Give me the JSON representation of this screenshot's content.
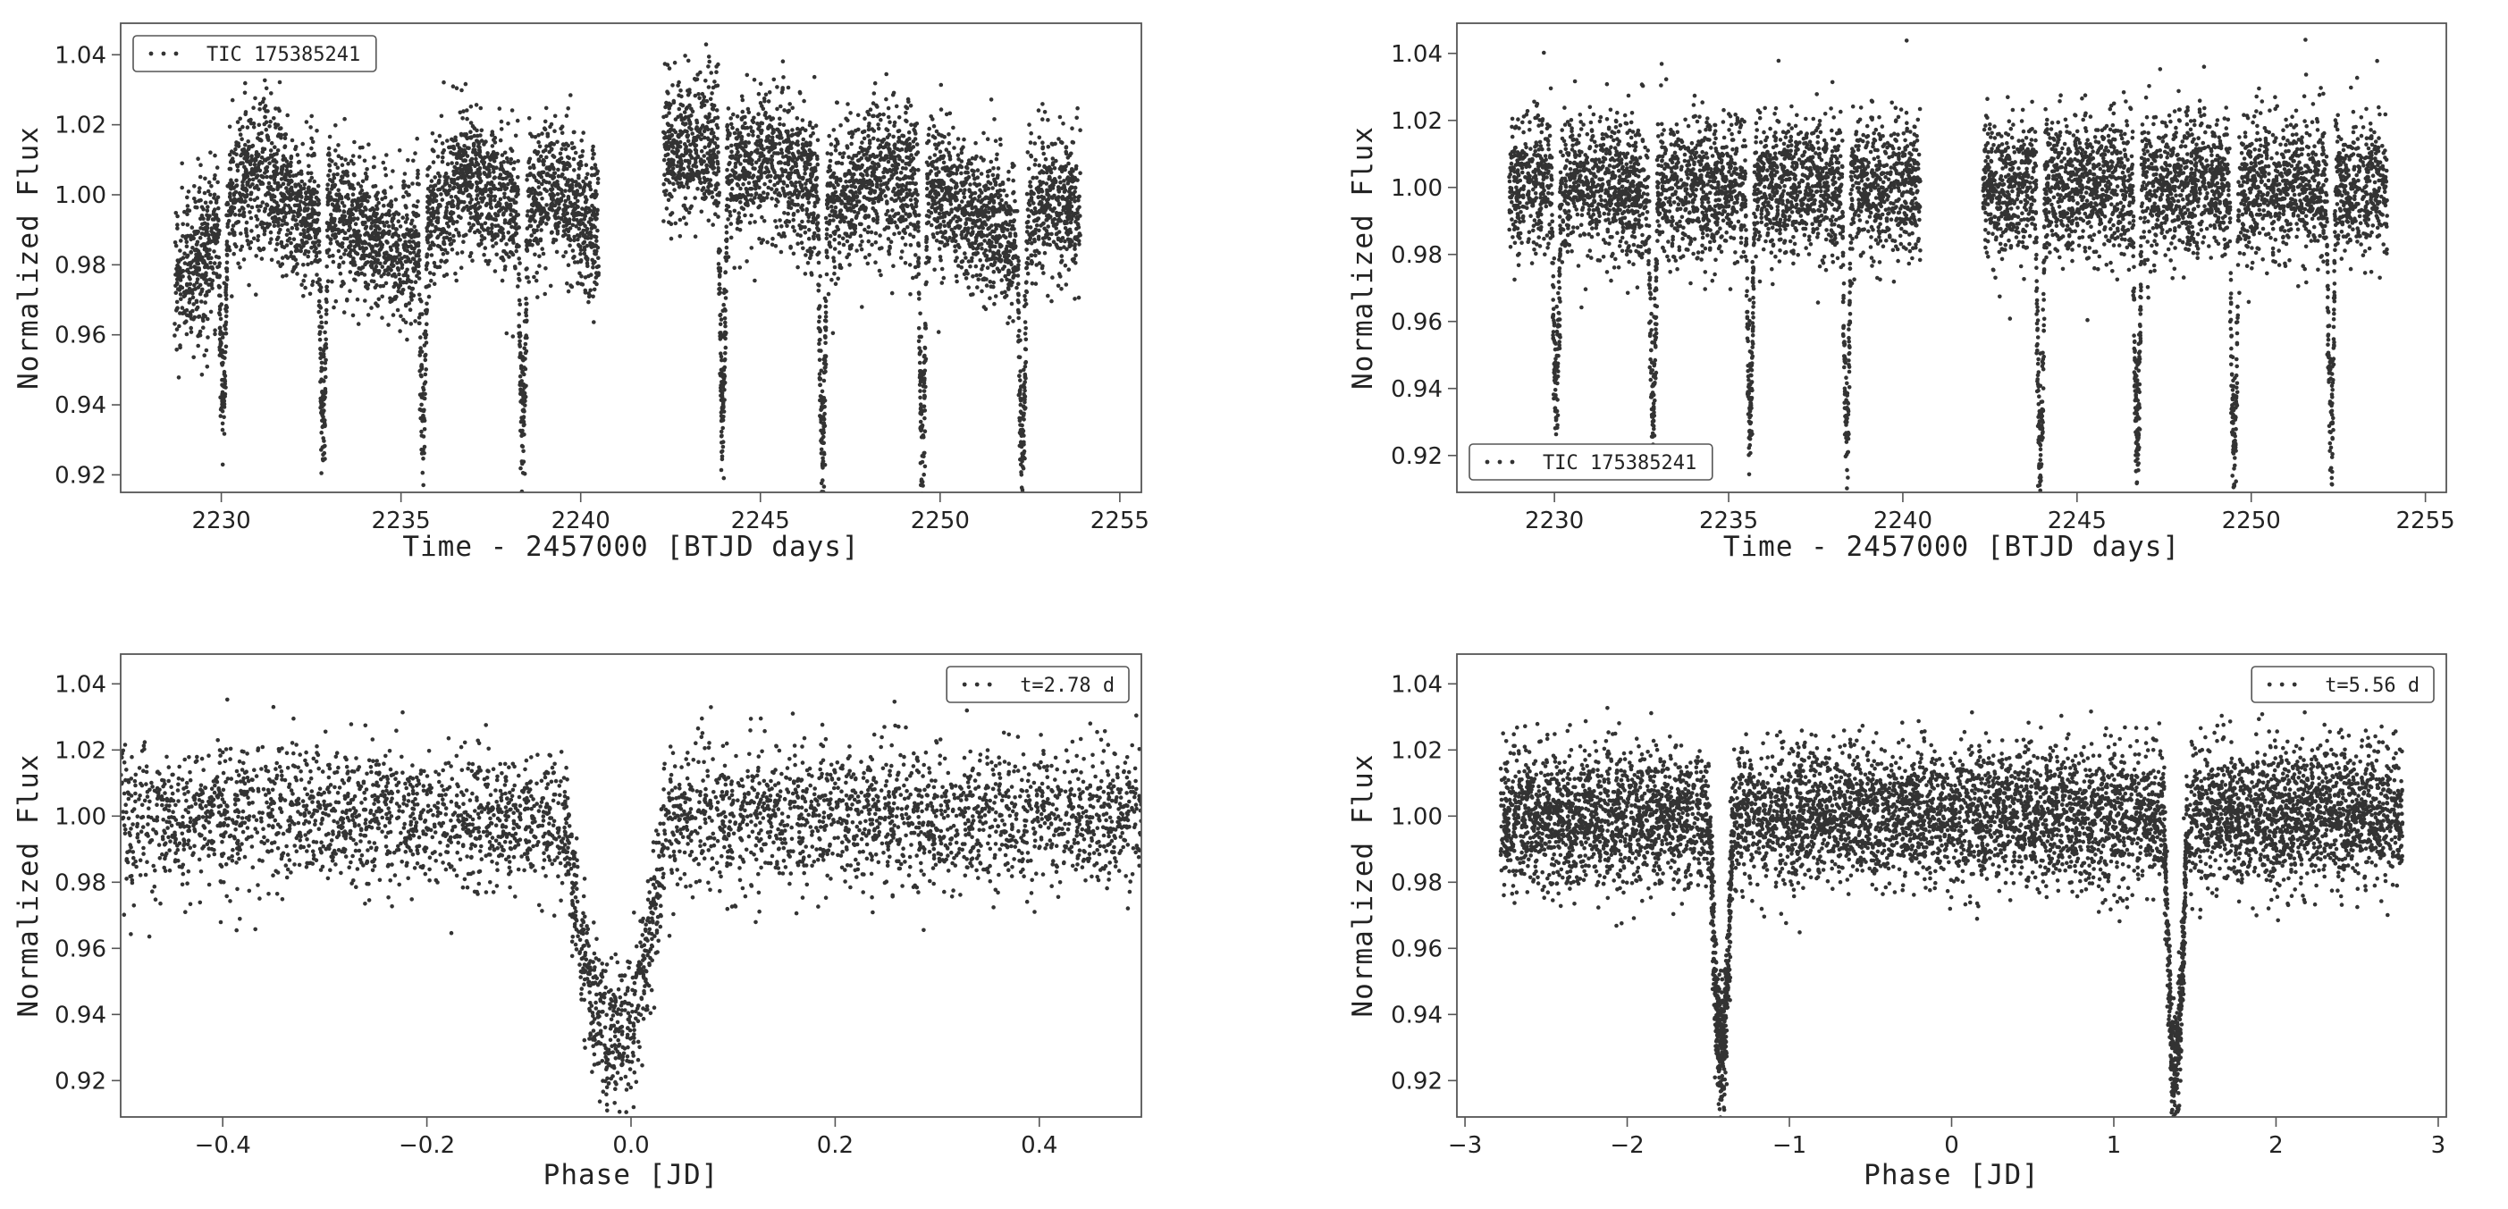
{
  "figure": {
    "background": "#ffffff",
    "marker_color": "#333333",
    "axis_color": "#555555"
  },
  "chart_data": [
    {
      "type": "scatter",
      "panel": "top-left",
      "title": "",
      "xlabel": "Time - 2457000 [BTJD days]",
      "ylabel": "Normalized Flux",
      "xlim": [
        2227.2,
        2255.6
      ],
      "ylim": [
        0.915,
        1.049
      ],
      "xticks": [
        2230,
        2235,
        2240,
        2245,
        2250,
        2255
      ],
      "xtick_labels": [
        "2230",
        "2235",
        "2240",
        "2245",
        "2250",
        "2255"
      ],
      "yticks": [
        0.92,
        0.94,
        0.96,
        0.98,
        1.0,
        1.02,
        1.04
      ],
      "ytick_labels": [
        "0.92",
        "0.94",
        "0.96",
        "0.98",
        "1.00",
        "1.02",
        "1.04"
      ],
      "legend": {
        "label": "TIC 175385241",
        "position": "top-left"
      },
      "series": [
        {
          "name": "TIC 175385241",
          "segments": [
            [
              2228.7,
              2240.5
            ],
            [
              2242.3,
              2253.9
            ]
          ],
          "trend": [
            [
              2228.7,
              0.975
            ],
            [
              2229.5,
              0.982
            ],
            [
              2230.4,
              1.002
            ],
            [
              2231.3,
              1.006
            ],
            [
              2232.2,
              0.994
            ],
            [
              2233.2,
              0.997
            ],
            [
              2234.2,
              0.988
            ],
            [
              2235.0,
              0.982
            ],
            [
              2235.8,
              0.992
            ],
            [
              2236.8,
              1.007
            ],
            [
              2237.6,
              0.998
            ],
            [
              2238.4,
              0.993
            ],
            [
              2239.0,
              1.004
            ],
            [
              2240.0,
              0.995
            ],
            [
              2240.5,
              0.988
            ],
            [
              2242.3,
              1.012
            ],
            [
              2243.5,
              1.013
            ],
            [
              2244.3,
              1.006
            ],
            [
              2245.2,
              1.011
            ],
            [
              2246.2,
              1.004
            ],
            [
              2247.2,
              0.997
            ],
            [
              2248.3,
              1.007
            ],
            [
              2249.2,
              1.004
            ],
            [
              2250.3,
              0.998
            ],
            [
              2251.3,
              0.992
            ],
            [
              2252.1,
              0.984
            ],
            [
              2253.0,
              0.999
            ],
            [
              2253.9,
              0.996
            ]
          ],
          "noise_sigma": 0.0105,
          "eclipses": [
            {
              "t": 2230.05,
              "depth": 0.051
            },
            {
              "t": 2232.83,
              "depth": 0.058
            },
            {
              "t": 2235.61,
              "depth": 0.056
            },
            {
              "t": 2238.39,
              "depth": 0.058
            },
            {
              "t": 2243.95,
              "depth": 0.07
            },
            {
              "t": 2246.73,
              "depth": 0.072
            },
            {
              "t": 2249.51,
              "depth": 0.076
            },
            {
              "t": 2252.29,
              "depth": 0.063
            }
          ],
          "eclipse_half_width": 0.13
        }
      ]
    },
    {
      "type": "scatter",
      "panel": "top-right",
      "title": "",
      "xlabel": "Time - 2457000 [BTJD days]",
      "ylabel": "Normalized Flux",
      "xlim": [
        2227.2,
        2255.6
      ],
      "ylim": [
        0.909,
        1.049
      ],
      "xticks": [
        2230,
        2235,
        2240,
        2245,
        2250,
        2255
      ],
      "xtick_labels": [
        "2230",
        "2235",
        "2240",
        "2245",
        "2250",
        "2255"
      ],
      "yticks": [
        0.92,
        0.94,
        0.96,
        0.98,
        1.0,
        1.02,
        1.04
      ],
      "ytick_labels": [
        "0.92",
        "0.94",
        "0.96",
        "0.98",
        "1.00",
        "1.02",
        "1.04"
      ],
      "legend": {
        "label": "TIC 175385241",
        "position": "bottom-left"
      },
      "series": [
        {
          "name": "TIC 175385241",
          "segments": [
            [
              2228.7,
              2240.5
            ],
            [
              2242.3,
              2253.9
            ]
          ],
          "trend": [
            [
              2228.7,
              1.0
            ],
            [
              2253.9,
              1.0
            ]
          ],
          "noise_sigma": 0.0105,
          "eclipses": [
            {
              "t": 2230.05,
              "depth": 0.062
            },
            {
              "t": 2232.83,
              "depth": 0.067
            },
            {
              "t": 2235.61,
              "depth": 0.068
            },
            {
              "t": 2238.39,
              "depth": 0.073
            },
            {
              "t": 2243.95,
              "depth": 0.082
            },
            {
              "t": 2246.73,
              "depth": 0.075
            },
            {
              "t": 2249.51,
              "depth": 0.079
            },
            {
              "t": 2252.29,
              "depth": 0.072
            }
          ],
          "eclipse_half_width": 0.13
        }
      ]
    },
    {
      "type": "scatter",
      "panel": "bottom-left",
      "title": "",
      "xlabel": "Phase [JD]",
      "ylabel": "Normalized Flux",
      "xlim": [
        -0.5,
        0.5
      ],
      "ylim": [
        0.909,
        1.049
      ],
      "xticks": [
        -0.4,
        -0.2,
        0.0,
        0.2,
        0.4
      ],
      "xtick_labels": [
        "−0.4",
        "−0.2",
        "0.0",
        "0.2",
        "0.4"
      ],
      "yticks": [
        0.92,
        0.94,
        0.96,
        0.98,
        1.0,
        1.02,
        1.04
      ],
      "ytick_labels": [
        "0.92",
        "0.94",
        "0.96",
        "0.98",
        "1.00",
        "1.02",
        "1.04"
      ],
      "legend": {
        "label": "t=2.78 d",
        "position": "top-right"
      },
      "series": [
        {
          "name": "t=2.78 d",
          "segments": [
            [
              -0.5,
              0.5
            ]
          ],
          "trend": [
            [
              -0.5,
              1.0
            ],
            [
              0.5,
              1.0
            ]
          ],
          "noise_sigma": 0.0105,
          "eclipses": [
            {
              "t": -0.015,
              "depth": 0.068
            }
          ],
          "eclipse_half_width": 0.05
        }
      ]
    },
    {
      "type": "scatter",
      "panel": "bottom-right",
      "title": "",
      "xlabel": "Phase [JD]",
      "ylabel": "Normalized Flux",
      "xlim": [
        -3.05,
        3.05
      ],
      "ylim": [
        0.909,
        1.049
      ],
      "xticks": [
        -3,
        -2,
        -1,
        0,
        1,
        2,
        3
      ],
      "xtick_labels": [
        "−3",
        "−2",
        "−1",
        "0",
        "1",
        "2",
        "3"
      ],
      "yticks": [
        0.92,
        0.94,
        0.96,
        0.98,
        1.0,
        1.02,
        1.04
      ],
      "ytick_labels": [
        "0.92",
        "0.94",
        "0.96",
        "0.98",
        "1.00",
        "1.02",
        "1.04"
      ],
      "legend": {
        "label": "t=5.56 d",
        "position": "top-right"
      },
      "series": [
        {
          "name": "t=5.56 d",
          "segments": [
            [
              -2.78,
              2.78
            ]
          ],
          "trend": [
            [
              -2.78,
              1.0
            ],
            [
              2.78,
              1.0
            ]
          ],
          "noise_sigma": 0.0105,
          "eclipses": [
            {
              "t": -1.42,
              "depth": 0.072
            },
            {
              "t": 1.38,
              "depth": 0.078
            }
          ],
          "eclipse_half_width": 0.07
        }
      ]
    }
  ]
}
